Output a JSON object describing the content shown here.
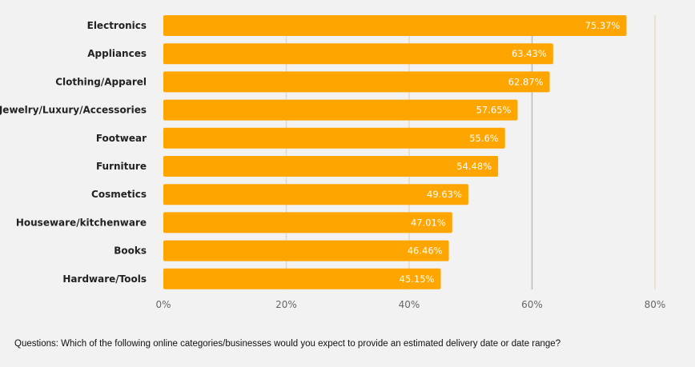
{
  "chart_data": {
    "type": "bar",
    "orientation": "horizontal",
    "categories": [
      "Electronics",
      "Appliances",
      "Clothing/Apparel",
      "Jewelry/Luxury/Accessories",
      "Footwear",
      "Furniture",
      "Cosmetics",
      "Houseware/kitchenware",
      "Books",
      "Hardware/Tools"
    ],
    "values": [
      75.37,
      63.43,
      62.87,
      57.65,
      55.6,
      54.48,
      49.63,
      47.01,
      46.46,
      45.15
    ],
    "value_labels": [
      "75.37%",
      "63.43%",
      "62.87%",
      "57.65%",
      "55.6%",
      "54.48%",
      "49.63%",
      "47.01%",
      "46.46%",
      "45.15%"
    ],
    "xlim": [
      0,
      80
    ],
    "x_ticks": [
      "0%",
      "20%",
      "40%",
      "60%",
      "80%"
    ],
    "grid": true,
    "title": "",
    "xlabel": "",
    "ylabel": "",
    "colors": {
      "bar": "#FFA500",
      "background": "#F2F2F2",
      "gridline": "#E8D9BE",
      "gridline_60": "#BBBBBB"
    }
  },
  "footnote": "Questions: Which of the following online categories/businesses would you expect to provide an estimated delivery date or date range?"
}
